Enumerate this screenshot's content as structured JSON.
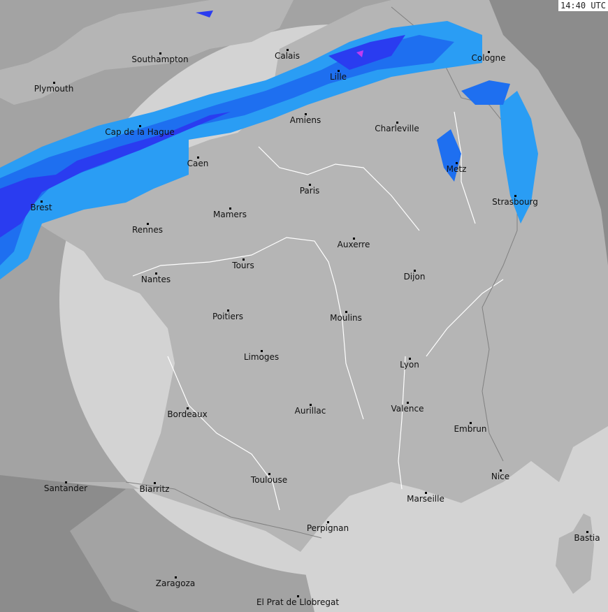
{
  "timestamp": "14:40 UTC",
  "colors": {
    "outside_land": "#8c8c8c",
    "outside_sea": "#a6a6a6",
    "radar_sea": "#d3d3d3",
    "radar_land": "#b5b5b5",
    "rain_light": "#2a9df4",
    "rain_medium": "#1e6ff0",
    "rain_heavy": "#2a3cf0",
    "rain_extreme": "#c03cf0",
    "rivers": "#ffffff",
    "borders": "#808080"
  },
  "cities": [
    "Southampton",
    "Plymouth",
    "Calais",
    "Lille",
    "Cologne",
    "Amiens",
    "Charleville",
    "Cap de la Hague",
    "Caen",
    "Metz",
    "Paris",
    "Strasbourg",
    "Brest",
    "Mamers",
    "Rennes",
    "Auxerre",
    "Tours",
    "Dijon",
    "Nantes",
    "Poitiers",
    "Moulins",
    "Limoges",
    "Lyon",
    "Valence",
    "Aurillac",
    "Bordeaux",
    "Embrun",
    "Nice",
    "Toulouse",
    "Santander",
    "Biarritz",
    "Marseille",
    "Perpignan",
    "Bastia",
    "Zaragoza",
    "El Prat de Llobregat"
  ]
}
